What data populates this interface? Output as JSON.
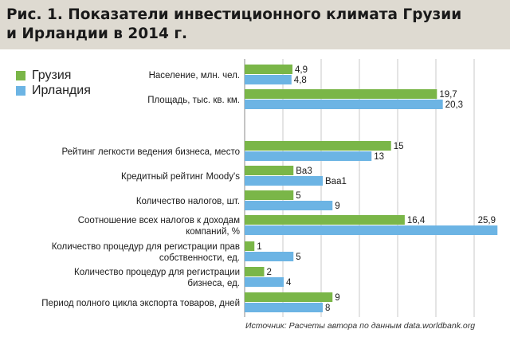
{
  "title": {
    "line1": "Рис. 1. Показатели инвестиционного климата Грузии",
    "line2": "и Ирландии в 2014 г."
  },
  "source": "Источник: Расчеты автора по данным data.worldbank.org",
  "colors": {
    "georgia": "#7ab648",
    "ireland": "#6cb4e4",
    "header_bg": "#dedad1",
    "grid": "#c8c8c8"
  },
  "chart_data": {
    "type": "bar",
    "orientation": "horizontal",
    "legend": {
      "placement": "top-left"
    },
    "grid": true,
    "series": [
      {
        "name": "Грузия",
        "color": "#7ab648"
      },
      {
        "name": "Ирландия",
        "color": "#6cb4e4"
      }
    ],
    "categories": [
      {
        "label": [
          "Население, млн. чел."
        ],
        "scale": 1.0,
        "values": [
          4.9,
          4.8
        ],
        "value_labels": [
          "4,9",
          "4,8"
        ]
      },
      {
        "label": [
          "Площадь, тыс. кв. км."
        ],
        "scale": 1.0,
        "values": [
          19.7,
          20.3
        ],
        "value_labels": [
          "19,7",
          "20,3"
        ]
      },
      {
        "label": [
          "Рейтинг легкости ведения бизнеса, место"
        ],
        "scale": 1.0,
        "values": [
          15,
          13
        ],
        "value_labels": [
          "15",
          "13"
        ]
      },
      {
        "label": [
          "Кредитный рейтинг Moody's"
        ],
        "scale": 1.0,
        "values": [
          5,
          8
        ],
        "value_labels": [
          "Ba3",
          "Baa1"
        ]
      },
      {
        "label": [
          "Количество налогов, шт."
        ],
        "scale": 1.0,
        "values": [
          5,
          9
        ],
        "value_labels": [
          "5",
          "9"
        ]
      },
      {
        "label": [
          "Соотношение всех налогов к доходам",
          "компаний, %"
        ],
        "scale": 1.0,
        "values": [
          16.4,
          25.9
        ],
        "value_labels": [
          "16,4",
          "25,9"
        ]
      },
      {
        "label": [
          "Количество процедур для регистрации прав",
          "собственности, ед."
        ],
        "scale": 1.0,
        "values": [
          1,
          5
        ],
        "value_labels": [
          "1",
          "5"
        ]
      },
      {
        "label": [
          "Количество процедур для регистрации",
          "бизнеса, ед."
        ],
        "scale": 1.0,
        "values": [
          2,
          4
        ],
        "value_labels": [
          "2",
          "4"
        ]
      },
      {
        "label": [
          "Период полного цикла экспорта товаров, дней"
        ],
        "scale": 1.0,
        "values": [
          9,
          8
        ],
        "value_labels": [
          "9",
          "8"
        ]
      }
    ]
  }
}
